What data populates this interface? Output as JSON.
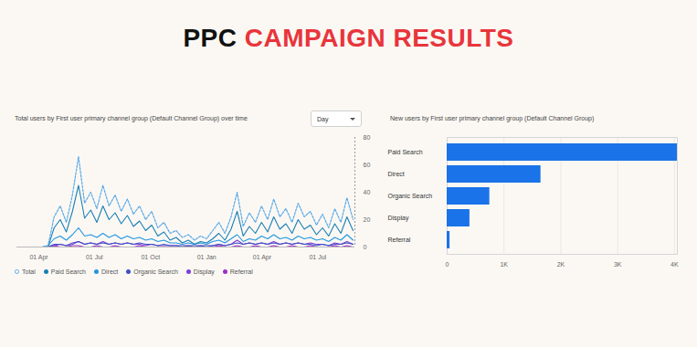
{
  "heading": [
    {
      "text": "PPC",
      "color": "#111111"
    },
    {
      "text": "CAMPAIGN RESULTS",
      "color": "#e8353b"
    }
  ],
  "chart_data": [
    {
      "type": "line",
      "title": "Total users by First user primary channel group (Default Channel Group) over time",
      "annotations": [
        "Day"
      ],
      "x": [
        -35,
        -25,
        -15,
        -5,
        5,
        15,
        25,
        35,
        45,
        55,
        65,
        75,
        85,
        95,
        105,
        115,
        125,
        135,
        145,
        155,
        165,
        175,
        185,
        195,
        205,
        215,
        225,
        235,
        245,
        255,
        265,
        275,
        285,
        295,
        305,
        315,
        325,
        335,
        345,
        355,
        365,
        375,
        385,
        395,
        405,
        415,
        425,
        435,
        445,
        455,
        465,
        475,
        485,
        495,
        505,
        515
      ],
      "xlim": [
        -36,
        518
      ],
      "xticks": [
        {
          "value": 0,
          "label": "01 Apr"
        },
        {
          "value": 91,
          "label": "01 Jul"
        },
        {
          "value": 183,
          "label": "01 Oct"
        },
        {
          "value": 275,
          "label": "01 Jan"
        },
        {
          "value": 366,
          "label": "01 Apr"
        },
        {
          "value": 457,
          "label": "01 Jul"
        }
      ],
      "ylim": [
        0,
        80
      ],
      "yticks": [
        0,
        20,
        40,
        60,
        80
      ],
      "grid": false,
      "legend": "bottom",
      "series": [
        {
          "name": "Total",
          "color": "#5aa9e6",
          "line_style": "dashed",
          "marker": "circle-open",
          "values": [
            0,
            0,
            0,
            0,
            0,
            1,
            22,
            30,
            18,
            38,
            66,
            32,
            40,
            28,
            45,
            30,
            38,
            26,
            35,
            24,
            30,
            20,
            26,
            14,
            18,
            10,
            12,
            7,
            9,
            5,
            8,
            6,
            12,
            18,
            10,
            22,
            40,
            15,
            25,
            18,
            30,
            20,
            35,
            22,
            28,
            18,
            32,
            22,
            26,
            16,
            24,
            14,
            28,
            18,
            36,
            20
          ]
        },
        {
          "name": "Paid Search",
          "color": "#1a7fb5",
          "line_style": "solid",
          "marker": "circle",
          "values": [
            0,
            0,
            0,
            0,
            0,
            0,
            14,
            20,
            11,
            26,
            45,
            21,
            27,
            18,
            30,
            20,
            25,
            17,
            23,
            15,
            19,
            12,
            16,
            8,
            11,
            5,
            7,
            3,
            5,
            2,
            4,
            3,
            6,
            10,
            5,
            13,
            26,
            8,
            15,
            10,
            18,
            11,
            22,
            13,
            17,
            10,
            20,
            13,
            16,
            9,
            14,
            8,
            17,
            10,
            22,
            12
          ]
        },
        {
          "name": "Direct",
          "color": "#2196e0",
          "line_style": "solid",
          "marker": "circle",
          "values": [
            0,
            0,
            0,
            0,
            0,
            1,
            6,
            8,
            5,
            9,
            14,
            8,
            9,
            7,
            10,
            7,
            9,
            6,
            8,
            6,
            7,
            5,
            6,
            4,
            5,
            3,
            3,
            2,
            3,
            2,
            3,
            2,
            4,
            5,
            3,
            6,
            9,
            4,
            6,
            5,
            8,
            6,
            9,
            6,
            7,
            5,
            8,
            6,
            7,
            5,
            6,
            4,
            7,
            5,
            9,
            5
          ]
        },
        {
          "name": "Organic Search",
          "color": "#3b4fc4",
          "line_style": "solid",
          "marker": "circle",
          "values": [
            0,
            0,
            0,
            0,
            0,
            0,
            2,
            2,
            1,
            2,
            4,
            2,
            3,
            2,
            3,
            2,
            3,
            2,
            3,
            2,
            3,
            2,
            2,
            1,
            2,
            1,
            1,
            1,
            1,
            1,
            1,
            1,
            1,
            2,
            1,
            2,
            3,
            2,
            3,
            2,
            3,
            2,
            3,
            2,
            3,
            2,
            3,
            2,
            2,
            1,
            2,
            1,
            2,
            2,
            3,
            2
          ]
        },
        {
          "name": "Display",
          "color": "#7b3fd6",
          "line_style": "solid",
          "marker": "circle",
          "values": [
            0,
            0,
            0,
            0,
            0,
            0,
            1,
            2,
            1,
            3,
            4,
            2,
            3,
            2,
            4,
            2,
            3,
            2,
            3,
            2,
            2,
            1,
            2,
            1,
            1,
            1,
            1,
            0,
            1,
            0,
            1,
            0,
            1,
            2,
            1,
            2,
            5,
            2,
            3,
            2,
            3,
            2,
            4,
            2,
            3,
            2,
            3,
            2,
            3,
            2,
            2,
            1,
            3,
            2,
            4,
            2
          ]
        },
        {
          "name": "Referral",
          "color": "#9a2fc4",
          "line_style": "solid",
          "marker": "circle",
          "values": [
            0,
            0,
            0,
            0,
            0,
            0,
            1,
            0,
            0,
            1,
            1,
            0,
            0,
            1,
            0,
            0,
            1,
            0,
            0,
            0,
            1,
            0,
            0,
            0,
            0,
            0,
            0,
            0,
            0,
            0,
            0,
            0,
            0,
            1,
            0,
            0,
            1,
            0,
            0,
            1,
            0,
            0,
            1,
            0,
            0,
            1,
            0,
            0,
            1,
            0,
            0,
            0,
            1,
            0,
            1,
            0
          ]
        }
      ]
    },
    {
      "type": "bar",
      "orientation": "horizontal",
      "title": "New users by First user primary channel group (Default Channel Group)",
      "categories": [
        "Paid Search",
        "Direct",
        "Organic Search",
        "Display",
        "Referral"
      ],
      "values": [
        4050,
        1650,
        750,
        400,
        50
      ],
      "color": "#1a73e8",
      "xlim": [
        0,
        4050
      ],
      "xticks": [
        0,
        {
          "value": 1000,
          "label": "1K"
        },
        {
          "value": 2000,
          "label": "2K"
        },
        {
          "value": 3000,
          "label": "3K"
        },
        {
          "value": 4000,
          "label": "4K"
        }
      ],
      "grid": true
    }
  ]
}
